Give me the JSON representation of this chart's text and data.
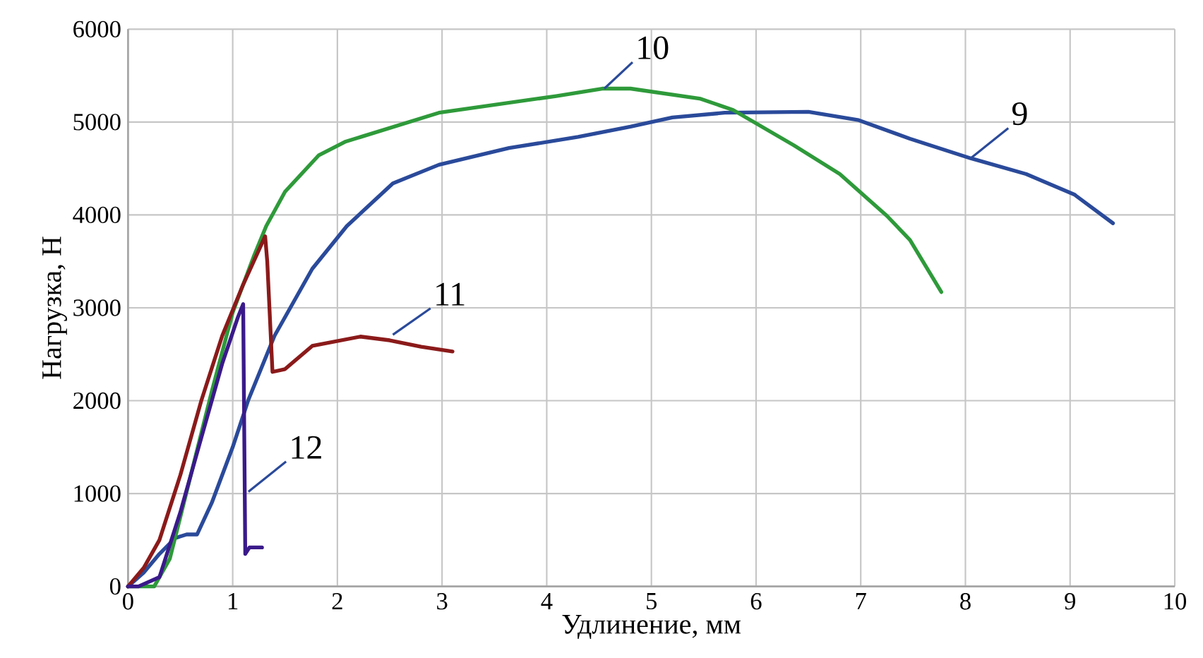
{
  "chart_data": {
    "type": "line",
    "xlabel": "Удлинение, мм",
    "ylabel": "Нагрузка, Н",
    "xlim": [
      0,
      10
    ],
    "ylim": [
      0,
      6000
    ],
    "xticks": [
      0,
      1,
      2,
      3,
      4,
      5,
      6,
      7,
      8,
      9,
      10
    ],
    "yticks": [
      0,
      1000,
      2000,
      3000,
      4000,
      5000,
      6000
    ],
    "grid": true,
    "marker": "none",
    "line_style": "solid",
    "series": [
      {
        "color": "#2a4a9a",
        "x": [
          0,
          0.15,
          0.3,
          0.45,
          0.56,
          0.66,
          0.8,
          1.0,
          1.15,
          1.4,
          1.76,
          2.09,
          2.53,
          2.97,
          3.64,
          4.3,
          4.8,
          5.2,
          5.7,
          6.5,
          6.98,
          7.47,
          8.05,
          8.58,
          9.04,
          9.41
        ],
        "values": [
          0,
          150,
          350,
          520,
          560,
          560,
          900,
          1500,
          2010,
          2700,
          3420,
          3880,
          4340,
          4540,
          4720,
          4840,
          4950,
          5050,
          5100,
          5110,
          5020,
          4820,
          4610,
          4440,
          4220,
          3910
        ]
      },
      {
        "color": "#2e9a3a",
        "x": [
          0,
          0.25,
          0.4,
          0.6,
          0.8,
          1.0,
          1.2,
          1.32,
          1.5,
          1.82,
          2.08,
          2.97,
          4.09,
          4.53,
          4.8,
          5.47,
          5.78,
          6.36,
          6.8,
          7.25,
          7.47,
          7.77
        ],
        "values": [
          0,
          0,
          300,
          1200,
          2100,
          2950,
          3550,
          3880,
          4250,
          4640,
          4790,
          5100,
          5280,
          5360,
          5360,
          5250,
          5130,
          4750,
          4440,
          3990,
          3730,
          3170
        ]
      },
      {
        "color": "#8b1a1a",
        "x": [
          0,
          0.15,
          0.3,
          0.5,
          0.7,
          0.9,
          1.1,
          1.31,
          1.33,
          1.38,
          1.5,
          1.76,
          2.22,
          2.5,
          2.8,
          3.1
        ],
        "values": [
          0,
          200,
          500,
          1200,
          2000,
          2700,
          3250,
          3770,
          3500,
          2310,
          2340,
          2590,
          2690,
          2650,
          2580,
          2530
        ]
      },
      {
        "color": "#3a1a8a",
        "x": [
          0,
          0.1,
          0.3,
          0.5,
          0.7,
          0.9,
          1.05,
          1.1,
          1.12,
          1.16,
          1.28
        ],
        "values": [
          0,
          0,
          100,
          800,
          1600,
          2400,
          2900,
          3040,
          350,
          420,
          420
        ]
      }
    ],
    "annotations": [
      {
        "text": "9",
        "x": 8.05,
        "y": 4610
      },
      {
        "text": "10",
        "x": 4.55,
        "y": 5360
      },
      {
        "text": "11",
        "x": 2.53,
        "y": 2710
      },
      {
        "text": "12",
        "x": 1.15,
        "y": 1020
      }
    ]
  }
}
